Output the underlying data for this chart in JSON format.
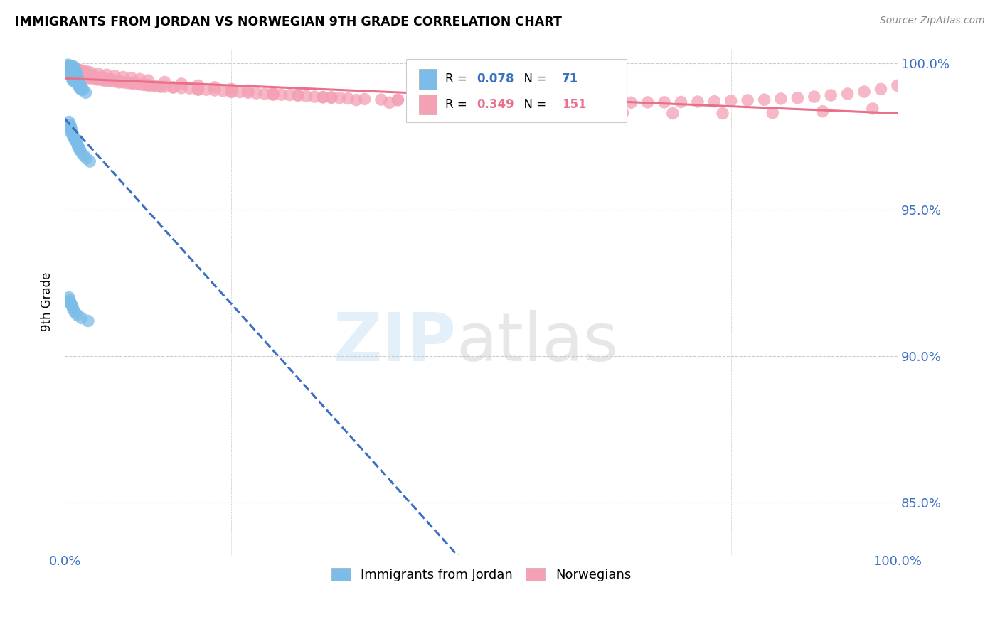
{
  "title": "IMMIGRANTS FROM JORDAN VS NORWEGIAN 9TH GRADE CORRELATION CHART",
  "source": "Source: ZipAtlas.com",
  "ylabel": "9th Grade",
  "xlim": [
    0.0,
    1.0
  ],
  "ylim": [
    0.832,
    1.005
  ],
  "yticks": [
    0.85,
    0.9,
    0.95,
    1.0
  ],
  "ytick_labels": [
    "85.0%",
    "90.0%",
    "95.0%",
    "100.0%"
  ],
  "legend_jordan": "Immigrants from Jordan",
  "legend_norwegian": "Norwegians",
  "r_jordan": 0.078,
  "n_jordan": 71,
  "r_norwegian": 0.349,
  "n_norwegian": 151,
  "color_jordan": "#7bbde8",
  "color_norwegian": "#f4a0b5",
  "line_jordan": "#3a6fc4",
  "line_norwegian": "#e8708a",
  "jordan_x": [
    0.004,
    0.005,
    0.005,
    0.005,
    0.006,
    0.006,
    0.007,
    0.007,
    0.008,
    0.008,
    0.009,
    0.009,
    0.009,
    0.009,
    0.01,
    0.01,
    0.01,
    0.01,
    0.011,
    0.011,
    0.011,
    0.012,
    0.012,
    0.013,
    0.013,
    0.013,
    0.014,
    0.014,
    0.015,
    0.015,
    0.016,
    0.016,
    0.017,
    0.018,
    0.018,
    0.019,
    0.02,
    0.02,
    0.022,
    0.025,
    0.005,
    0.005,
    0.006,
    0.007,
    0.007,
    0.008,
    0.009,
    0.01,
    0.011,
    0.012,
    0.013,
    0.014,
    0.015,
    0.016,
    0.017,
    0.018,
    0.02,
    0.023,
    0.026,
    0.03,
    0.005,
    0.005,
    0.006,
    0.007,
    0.008,
    0.009,
    0.01,
    0.012,
    0.015,
    0.02,
    0.028
  ],
  "jordan_y": [
    0.9995,
    0.999,
    0.998,
    0.997,
    0.999,
    0.9975,
    0.9985,
    0.9965,
    0.999,
    0.997,
    0.9985,
    0.9975,
    0.996,
    0.9945,
    0.999,
    0.9975,
    0.996,
    0.994,
    0.9985,
    0.9965,
    0.9945,
    0.9975,
    0.9955,
    0.9975,
    0.996,
    0.9935,
    0.9965,
    0.9945,
    0.9955,
    0.9935,
    0.9945,
    0.9925,
    0.9935,
    0.993,
    0.9915,
    0.992,
    0.992,
    0.991,
    0.991,
    0.99,
    0.98,
    0.978,
    0.979,
    0.9785,
    0.9765,
    0.9775,
    0.976,
    0.975,
    0.9745,
    0.974,
    0.974,
    0.973,
    0.9725,
    0.9715,
    0.971,
    0.9705,
    0.9695,
    0.9685,
    0.9675,
    0.9665,
    0.92,
    0.9185,
    0.919,
    0.918,
    0.9175,
    0.917,
    0.916,
    0.915,
    0.914,
    0.913,
    0.912
  ],
  "norwegian_x": [
    0.003,
    0.004,
    0.005,
    0.006,
    0.007,
    0.008,
    0.009,
    0.01,
    0.011,
    0.012,
    0.013,
    0.014,
    0.015,
    0.016,
    0.017,
    0.018,
    0.019,
    0.02,
    0.022,
    0.024,
    0.026,
    0.028,
    0.03,
    0.033,
    0.036,
    0.039,
    0.042,
    0.046,
    0.05,
    0.055,
    0.06,
    0.065,
    0.07,
    0.075,
    0.08,
    0.085,
    0.09,
    0.095,
    0.1,
    0.105,
    0.11,
    0.115,
    0.12,
    0.13,
    0.14,
    0.15,
    0.16,
    0.17,
    0.18,
    0.19,
    0.2,
    0.21,
    0.22,
    0.23,
    0.24,
    0.25,
    0.26,
    0.27,
    0.28,
    0.29,
    0.3,
    0.31,
    0.32,
    0.33,
    0.34,
    0.36,
    0.38,
    0.4,
    0.42,
    0.44,
    0.46,
    0.48,
    0.5,
    0.52,
    0.54,
    0.56,
    0.58,
    0.6,
    0.62,
    0.64,
    0.66,
    0.68,
    0.7,
    0.72,
    0.74,
    0.76,
    0.78,
    0.8,
    0.82,
    0.84,
    0.86,
    0.88,
    0.9,
    0.92,
    0.94,
    0.96,
    0.98,
    1.0,
    0.005,
    0.01,
    0.015,
    0.02,
    0.025,
    0.03,
    0.04,
    0.05,
    0.06,
    0.07,
    0.08,
    0.09,
    0.1,
    0.12,
    0.14,
    0.16,
    0.18,
    0.2,
    0.22,
    0.25,
    0.28,
    0.31,
    0.35,
    0.39,
    0.43,
    0.47,
    0.52,
    0.57,
    0.62,
    0.67,
    0.73,
    0.79,
    0.85,
    0.91,
    0.97,
    0.007,
    0.012,
    0.018,
    0.025,
    0.035,
    0.045,
    0.055,
    0.065,
    0.08,
    0.1,
    0.13,
    0.16,
    0.2,
    0.25,
    0.32,
    0.4,
    0.5
  ],
  "norwegian_y": [
    0.9985,
    0.9985,
    0.999,
    0.9985,
    0.998,
    0.9985,
    0.998,
    0.998,
    0.9975,
    0.9975,
    0.9975,
    0.997,
    0.997,
    0.9965,
    0.9965,
    0.9965,
    0.996,
    0.996,
    0.996,
    0.9955,
    0.9955,
    0.995,
    0.995,
    0.995,
    0.9948,
    0.9945,
    0.9945,
    0.9942,
    0.994,
    0.994,
    0.9938,
    0.9935,
    0.9935,
    0.9933,
    0.9932,
    0.993,
    0.9928,
    0.9926,
    0.9925,
    0.9923,
    0.9922,
    0.992,
    0.992,
    0.9918,
    0.9916,
    0.9915,
    0.9912,
    0.991,
    0.9908,
    0.9906,
    0.9904,
    0.9902,
    0.99,
    0.9898,
    0.9896,
    0.9895,
    0.9893,
    0.9892,
    0.989,
    0.9888,
    0.9886,
    0.9885,
    0.9883,
    0.9882,
    0.988,
    0.9878,
    0.9876,
    0.9875,
    0.9873,
    0.9872,
    0.9871,
    0.987,
    0.9869,
    0.9868,
    0.9868,
    0.9867,
    0.9867,
    0.9866,
    0.9866,
    0.9866,
    0.9866,
    0.9866,
    0.9867,
    0.9867,
    0.9868,
    0.9869,
    0.987,
    0.9872,
    0.9874,
    0.9876,
    0.9879,
    0.9882,
    0.9886,
    0.9891,
    0.9896,
    0.9903,
    0.9912,
    0.9924,
    0.999,
    0.9985,
    0.998,
    0.9976,
    0.9973,
    0.997,
    0.9965,
    0.9961,
    0.9957,
    0.9953,
    0.995,
    0.9946,
    0.9942,
    0.9936,
    0.993,
    0.9924,
    0.9918,
    0.9912,
    0.9907,
    0.9899,
    0.9892,
    0.9884,
    0.9875,
    0.9866,
    0.9858,
    0.9851,
    0.9843,
    0.9838,
    0.9834,
    0.9831,
    0.9829,
    0.9829,
    0.9831,
    0.9836,
    0.9845,
    0.999,
    0.9982,
    0.9975,
    0.9968,
    0.996,
    0.9953,
    0.9946,
    0.994,
    0.9933,
    0.9926,
    0.9918,
    0.991,
    0.9902,
    0.9893,
    0.9884,
    0.9875,
    0.9866
  ]
}
